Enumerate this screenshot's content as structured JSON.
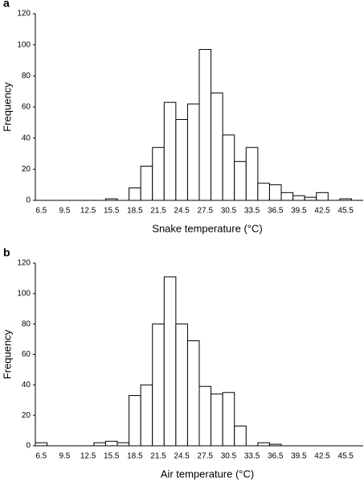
{
  "chart_data": [
    {
      "type": "bar",
      "label": "a",
      "x_label": "Snake temperature (°C)",
      "y_label": "Frequency",
      "categories": [
        "6.5",
        null,
        "9.5",
        null,
        "12.5",
        null,
        "15.5",
        null,
        "18.5",
        null,
        "21.5",
        null,
        "24.5",
        null,
        "27.5",
        null,
        "30.5",
        null,
        "33.5",
        null,
        "36.5",
        null,
        "39.5",
        null,
        "42.5",
        null,
        "45.5",
        null
      ],
      "values": [
        0,
        0,
        0,
        0,
        0,
        0,
        1,
        0,
        8,
        22,
        34,
        63,
        52,
        62,
        97,
        69,
        42,
        25,
        34,
        11,
        10,
        5,
        3,
        2,
        5,
        0,
        1,
        0
      ],
      "color": "#ffffff",
      "ylim": [
        0,
        120
      ],
      "yticks": [
        0,
        20,
        40,
        60,
        80,
        100,
        120
      ]
    },
    {
      "type": "bar",
      "label": "b",
      "x_label": "Air temperature (°C)",
      "y_label": "Frequency",
      "categories": [
        "6.5",
        null,
        "9.5",
        null,
        "12.5",
        null,
        "15.5",
        null,
        "18.5",
        null,
        "21.5",
        null,
        "24.5",
        null,
        "27.5",
        null,
        "30.5",
        null,
        "33.5",
        null,
        "36.5",
        null,
        "39.5",
        null,
        "42.5",
        null,
        "45.5",
        null
      ],
      "values": [
        2,
        0,
        0,
        0,
        0,
        2,
        3,
        2,
        33,
        40,
        80,
        111,
        80,
        69,
        39,
        34,
        35,
        13,
        0,
        2,
        1,
        0,
        0,
        0,
        0,
        0,
        0,
        0
      ],
      "color": "#ffffff",
      "ylim": [
        0,
        120
      ],
      "yticks": [
        0,
        20,
        40,
        60,
        80,
        100,
        120
      ]
    }
  ]
}
